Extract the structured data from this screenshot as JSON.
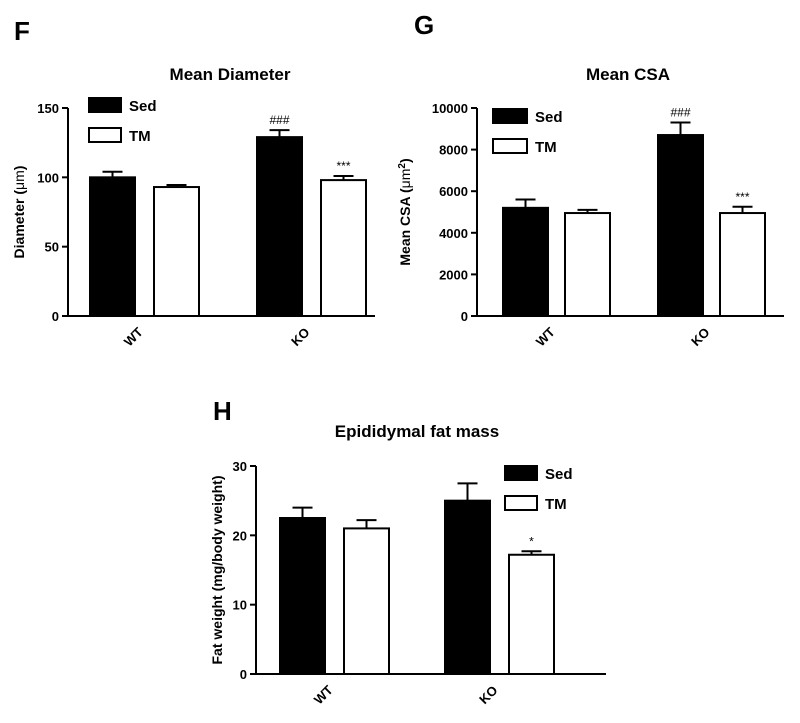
{
  "chart_data": [
    {
      "id": "F",
      "panel_letter": "F",
      "type": "bar",
      "title": "Mean Diameter",
      "ylabel_prefix": "Diameter (",
      "ylabel_unit": "μm",
      "ylabel_suffix": ")",
      "ylim": [
        0,
        150
      ],
      "yticks": [
        0,
        50,
        100,
        150
      ],
      "categories": [
        "WT",
        "KO"
      ],
      "series": [
        {
          "name": "Sed",
          "fill": "#000000",
          "values": [
            100,
            129
          ],
          "errors": [
            4,
            5
          ]
        },
        {
          "name": "TM",
          "fill": "#ffffff",
          "values": [
            93,
            98
          ],
          "errors": [
            1.5,
            3
          ]
        }
      ],
      "annotations": [
        {
          "series": 0,
          "category": 1,
          "text": "###"
        },
        {
          "series": 1,
          "category": 1,
          "text": "***"
        }
      ],
      "legend_placement": "top-left"
    },
    {
      "id": "G",
      "panel_letter": "G",
      "type": "bar",
      "title": "Mean CSA",
      "ylabel_prefix": "Mean CSA (",
      "ylabel_unit": "μm",
      "ylabel_sup": "2",
      "ylabel_suffix": ")",
      "ylim": [
        0,
        10000
      ],
      "yticks": [
        0,
        2000,
        4000,
        6000,
        8000,
        10000
      ],
      "categories": [
        "WT",
        "KO"
      ],
      "series": [
        {
          "name": "Sed",
          "fill": "#000000",
          "values": [
            5200,
            8700
          ],
          "errors": [
            400,
            600
          ]
        },
        {
          "name": "TM",
          "fill": "#ffffff",
          "values": [
            4950,
            4950
          ],
          "errors": [
            150,
            300
          ]
        }
      ],
      "annotations": [
        {
          "series": 0,
          "category": 1,
          "text": "###"
        },
        {
          "series": 1,
          "category": 1,
          "text": "***"
        }
      ],
      "legend_placement": "top-left"
    },
    {
      "id": "H",
      "panel_letter": "H",
      "type": "bar",
      "title": "Epididymal fat mass",
      "ylabel_prefix": "Fat weight (mg/body weight)",
      "ylim": [
        0,
        30
      ],
      "yticks": [
        0,
        10,
        20,
        30
      ],
      "categories": [
        "WT",
        "KO"
      ],
      "series": [
        {
          "name": "Sed",
          "fill": "#000000",
          "values": [
            22.5,
            25
          ],
          "errors": [
            1.5,
            2.5
          ]
        },
        {
          "name": "TM",
          "fill": "#ffffff",
          "values": [
            21,
            17.2
          ],
          "errors": [
            1.2,
            0.5
          ]
        }
      ],
      "annotations": [
        {
          "series": 1,
          "category": 1,
          "text": "*"
        }
      ],
      "legend_placement": "top-right"
    }
  ]
}
